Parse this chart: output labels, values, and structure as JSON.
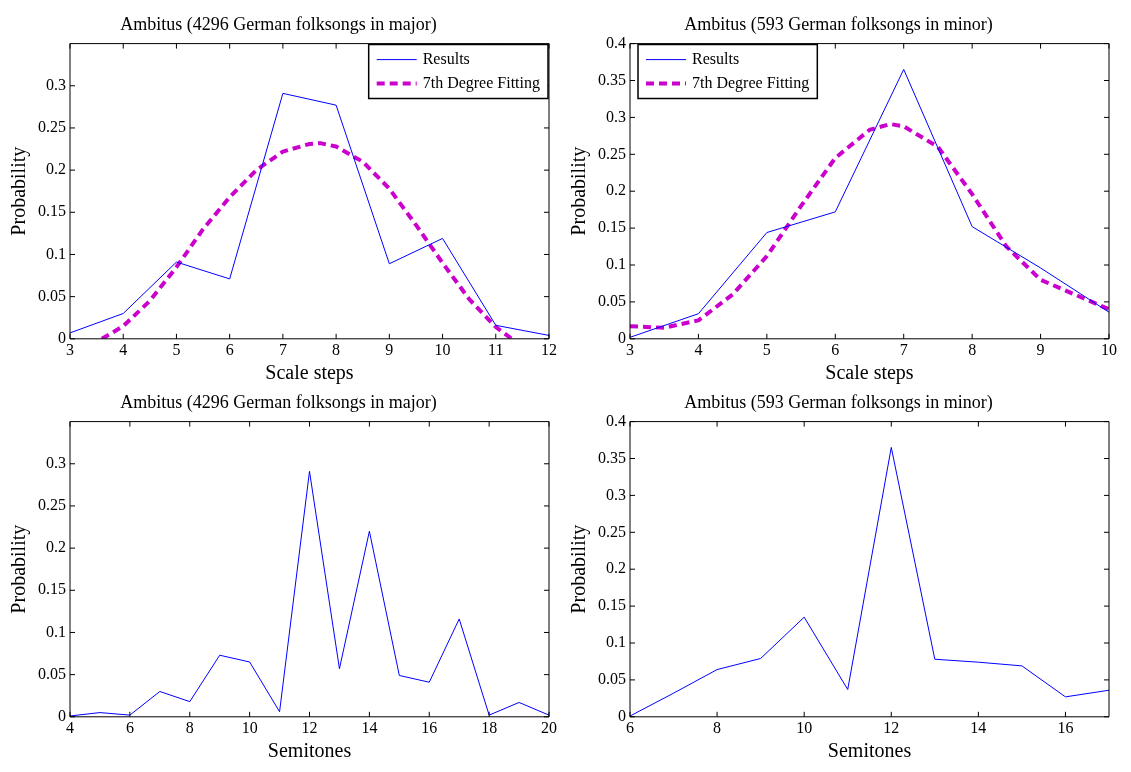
{
  "chart_data": [
    {
      "type": "line",
      "title": "Ambitus (4296 German folksongs in major)",
      "xlabel": "Scale steps",
      "ylabel": "Probability",
      "xlim": [
        3,
        12
      ],
      "xticks": [
        3,
        4,
        5,
        6,
        7,
        8,
        9,
        10,
        11,
        12
      ],
      "ylim": [
        0,
        0.35
      ],
      "yticks": [
        0,
        0.05,
        0.1,
        0.15,
        0.2,
        0.25,
        0.3
      ],
      "grid": false,
      "legend": "top right",
      "series": [
        {
          "name": "Results",
          "color": "#0000ff",
          "line_style": "solid",
          "x": [
            3,
            4,
            5,
            6,
            7,
            8,
            9,
            10,
            11,
            12
          ],
          "values": [
            0.007,
            0.03,
            0.091,
            0.071,
            0.291,
            0.277,
            0.089,
            0.119,
            0.016,
            0.004
          ]
        },
        {
          "name": "7th Degree Fitting",
          "color": "#cc00cc",
          "line_style": "dashed",
          "x": [
            3.6,
            4,
            4.5,
            5,
            5.5,
            6,
            6.5,
            7,
            7.5,
            7.7,
            8,
            8.5,
            9,
            9.5,
            10,
            10.5,
            11,
            11.3
          ],
          "values": [
            0,
            0.015,
            0.045,
            0.085,
            0.13,
            0.168,
            0.2,
            0.222,
            0.231,
            0.232,
            0.228,
            0.21,
            0.178,
            0.135,
            0.09,
            0.047,
            0.014,
            0
          ]
        }
      ]
    },
    {
      "type": "line",
      "title": "Ambitus (593 German folksongs in minor)",
      "xlabel": "Scale steps",
      "ylabel": "Probability",
      "xlim": [
        3,
        10
      ],
      "xticks": [
        3,
        4,
        5,
        6,
        7,
        8,
        9,
        10
      ],
      "ylim": [
        0,
        0.4
      ],
      "yticks": [
        0,
        0.05,
        0.1,
        0.15,
        0.2,
        0.25,
        0.3,
        0.35,
        0.4
      ],
      "grid": false,
      "legend": "top left",
      "series": [
        {
          "name": "Results",
          "color": "#0000ff",
          "line_style": "solid",
          "x": [
            3,
            4,
            5,
            6,
            7,
            8,
            9,
            10
          ],
          "values": [
            0.002,
            0.034,
            0.144,
            0.172,
            0.365,
            0.152,
            0.096,
            0.036
          ]
        },
        {
          "name": "7th Degree Fitting",
          "color": "#cc00cc",
          "line_style": "dashed",
          "x": [
            3,
            3.5,
            4,
            4.5,
            5,
            5.5,
            6,
            6.5,
            6.8,
            7,
            7.5,
            8,
            8.5,
            9,
            9.5,
            10
          ],
          "values": [
            0.017,
            0.015,
            0.025,
            0.06,
            0.112,
            0.18,
            0.245,
            0.283,
            0.291,
            0.288,
            0.26,
            0.196,
            0.125,
            0.08,
            0.06,
            0.04
          ]
        }
      ]
    },
    {
      "type": "line",
      "title": "Ambitus (4296 German folksongs in major)",
      "xlabel": "Semitones",
      "ylabel": "Probability",
      "xlim": [
        4,
        20
      ],
      "xticks": [
        4,
        6,
        8,
        10,
        12,
        14,
        16,
        18,
        20
      ],
      "ylim": [
        0,
        0.35
      ],
      "yticks": [
        0,
        0.05,
        0.1,
        0.15,
        0.2,
        0.25,
        0.3
      ],
      "grid": false,
      "legend": false,
      "series": [
        {
          "color": "#0000ff",
          "line_style": "solid",
          "x": [
            4,
            5,
            6,
            7,
            8,
            9,
            10,
            11,
            12,
            13,
            14,
            15,
            16,
            17,
            18,
            19,
            20
          ],
          "values": [
            0.001,
            0.005,
            0.002,
            0.03,
            0.018,
            0.073,
            0.065,
            0.006,
            0.291,
            0.057,
            0.22,
            0.049,
            0.041,
            0.116,
            0.002,
            0.017,
            0.002
          ]
        }
      ]
    },
    {
      "type": "line",
      "title": "Ambitus (593 German folksongs in minor)",
      "xlabel": "Semitones",
      "ylabel": "Probability",
      "xlim": [
        6,
        17
      ],
      "xticks": [
        6,
        8,
        10,
        12,
        14,
        16
      ],
      "ylim": [
        0,
        0.4
      ],
      "yticks": [
        0,
        0.05,
        0.1,
        0.15,
        0.2,
        0.25,
        0.3,
        0.35,
        0.4
      ],
      "grid": false,
      "legend": false,
      "series": [
        {
          "color": "#0000ff",
          "line_style": "solid",
          "x": [
            6,
            7,
            8,
            9,
            10,
            11,
            12,
            13,
            14,
            15,
            16,
            17
          ],
          "values": [
            0.001,
            0.032,
            0.064,
            0.079,
            0.135,
            0.037,
            0.365,
            0.078,
            0.074,
            0.069,
            0.027,
            0.036
          ]
        }
      ]
    }
  ]
}
